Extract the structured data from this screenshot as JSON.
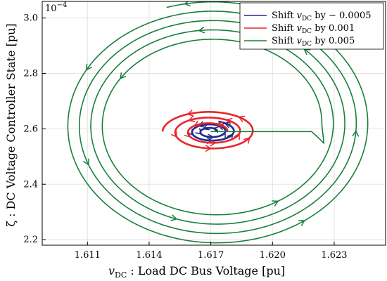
{
  "chart_data": {
    "type": "line",
    "xlabel": "v_DC : Load DC Bus Voltage [pu]",
    "xlabel_parts": {
      "sym": "v",
      "sub": "DC",
      "rest": " : Load DC Bus Voltage [pu]"
    },
    "ylabel": "ζ : DC Voltage Controller State [pu]",
    "y_exponent": "10",
    "y_exponent_power": "−4",
    "xlim": [
      1.6088,
      1.6255
    ],
    "ylim": [
      2.18,
      3.06
    ],
    "xticks": [
      1.611,
      1.614,
      1.617,
      1.62,
      1.623
    ],
    "xtick_labels": [
      "1.611",
      "1.614",
      "1.617",
      "1.620",
      "1.623"
    ],
    "yticks": [
      2.2,
      2.4,
      2.6,
      2.8,
      3.0
    ],
    "ytick_labels": [
      "2.2",
      "2.4",
      "2.6",
      "2.8",
      "3.0"
    ],
    "grid": true,
    "legend_position": "top-right",
    "series": [
      {
        "name": "Shift v_DC by −0.0005",
        "label_parts": {
          "pre": "Shift ",
          "sym": "v",
          "sub": "DC",
          "post": " by − 0.0005"
        },
        "color": "#1f2a8c",
        "kind": "spiral",
        "start": [
          1.617,
          2.59
        ],
        "center": [
          1.617,
          2.59
        ],
        "rx_start": 0.0003,
        "ry_start": 0.01,
        "rx_end": 0.0012,
        "ry_end": 0.038,
        "turns": 2.2
      },
      {
        "name": "Shift v_DC by 0.001",
        "label_parts": {
          "pre": "Shift ",
          "sym": "v",
          "sub": "DC",
          "post": " by 0.001"
        },
        "color": "#e8262b",
        "kind": "spiral",
        "start": [
          1.6165,
          2.59
        ],
        "center": [
          1.617,
          2.59
        ],
        "rx_start": 0.0008,
        "ry_start": 0.025,
        "rx_end": 0.00235,
        "ry_end": 0.076,
        "turns": 2.5
      },
      {
        "name": "Shift v_DC by 0.005",
        "label_parts": {
          "pre": "Shift ",
          "sym": "v",
          "sub": "DC",
          "post": " by 0.005"
        },
        "color": "#17803a",
        "kind": "spiral",
        "start": [
          1.617,
          2.59
        ],
        "path_points": [
          [
            1.617,
            2.59
          ],
          [
            1.6219,
            2.59
          ],
          [
            1.6222,
            2.57
          ],
          [
            1.6225,
            2.548
          ]
        ],
        "center": [
          1.6172,
          2.615
        ],
        "rx_start": 0.0052,
        "ry_start": 0.3,
        "rx_end": 0.0076,
        "ry_end": 0.445,
        "turns": 4.3
      }
    ]
  }
}
